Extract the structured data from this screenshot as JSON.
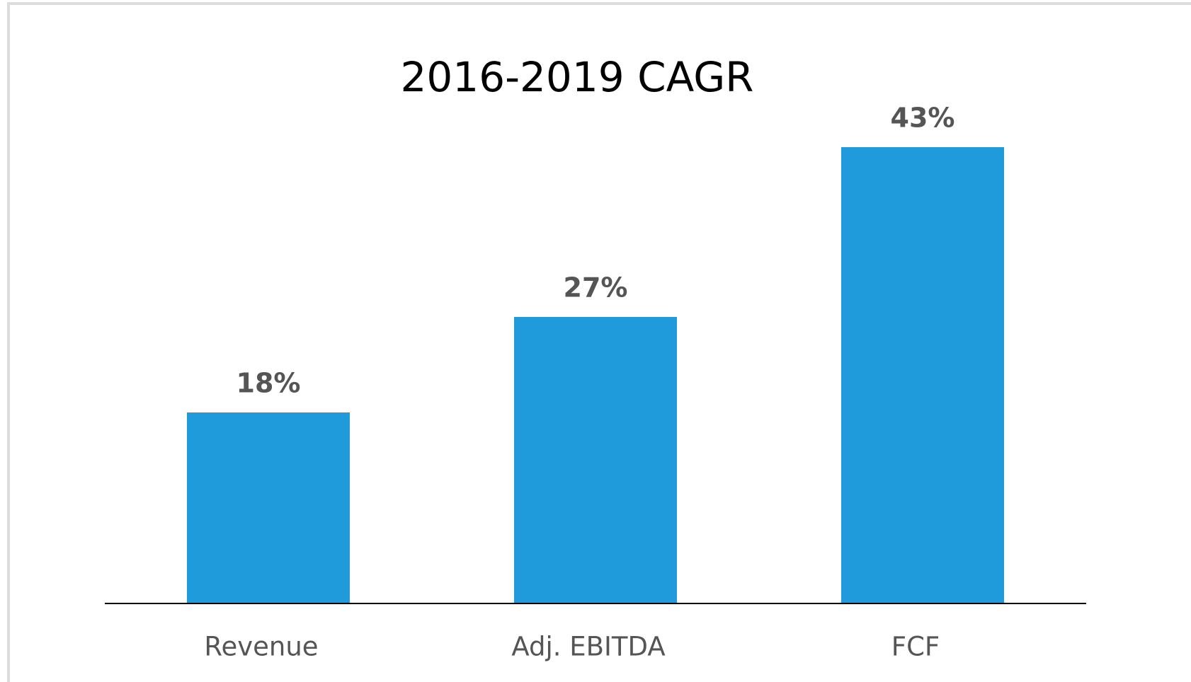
{
  "chart_data": {
    "type": "bar",
    "title": "2016-2019 CAGR",
    "categories": [
      "Revenue",
      "Adj. EBITDA",
      "FCF"
    ],
    "values": [
      18,
      27,
      43
    ],
    "value_labels": [
      "18%",
      "27%",
      "43%"
    ],
    "color": "#1f9bdb"
  }
}
